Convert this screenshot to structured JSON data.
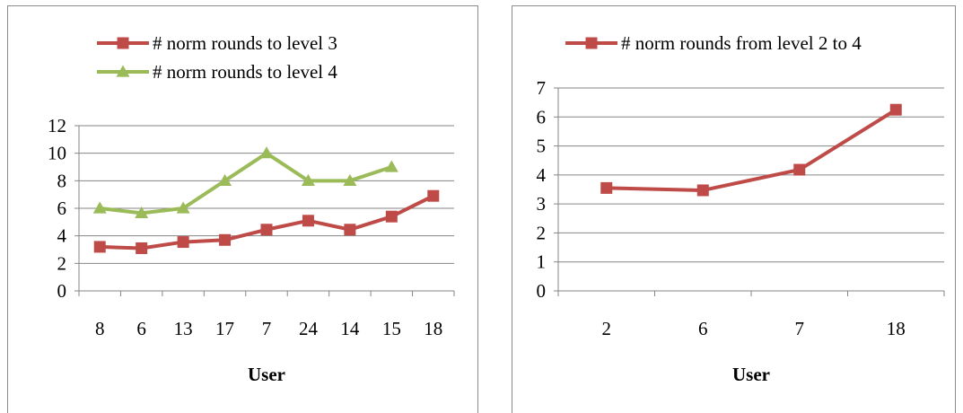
{
  "chart_data": [
    {
      "type": "line",
      "xlabel": "User",
      "ylabel": "",
      "categories": [
        "8",
        "6",
        "13",
        "17",
        "7",
        "24",
        "14",
        "15",
        "18"
      ],
      "ylim": [
        0,
        12
      ],
      "yticks": [
        0,
        2,
        4,
        6,
        8,
        10,
        12
      ],
      "grid": true,
      "legend_position": "top",
      "series": [
        {
          "name": "# norm rounds to level 3",
          "color": "#be4b48",
          "marker": "square",
          "values": [
            3.2,
            3.1,
            3.55,
            3.7,
            4.45,
            5.1,
            4.45,
            5.4,
            6.9
          ]
        },
        {
          "name": "# norm rounds to level 4",
          "color": "#9bbb59",
          "marker": "triangle",
          "values": [
            6.0,
            5.65,
            6.0,
            8.0,
            10.0,
            8.0,
            8.0,
            9.0,
            null
          ]
        }
      ]
    },
    {
      "type": "line",
      "xlabel": "User",
      "ylabel": "",
      "categories": [
        "2",
        "6",
        "7",
        "18"
      ],
      "ylim": [
        0,
        7
      ],
      "yticks": [
        0,
        1,
        2,
        3,
        4,
        5,
        6,
        7
      ],
      "grid": true,
      "legend_position": "top",
      "series": [
        {
          "name": "# norm rounds from level 2 to 4",
          "color": "#be4b48",
          "marker": "square",
          "values": [
            3.55,
            3.47,
            4.18,
            6.25
          ]
        }
      ]
    }
  ]
}
